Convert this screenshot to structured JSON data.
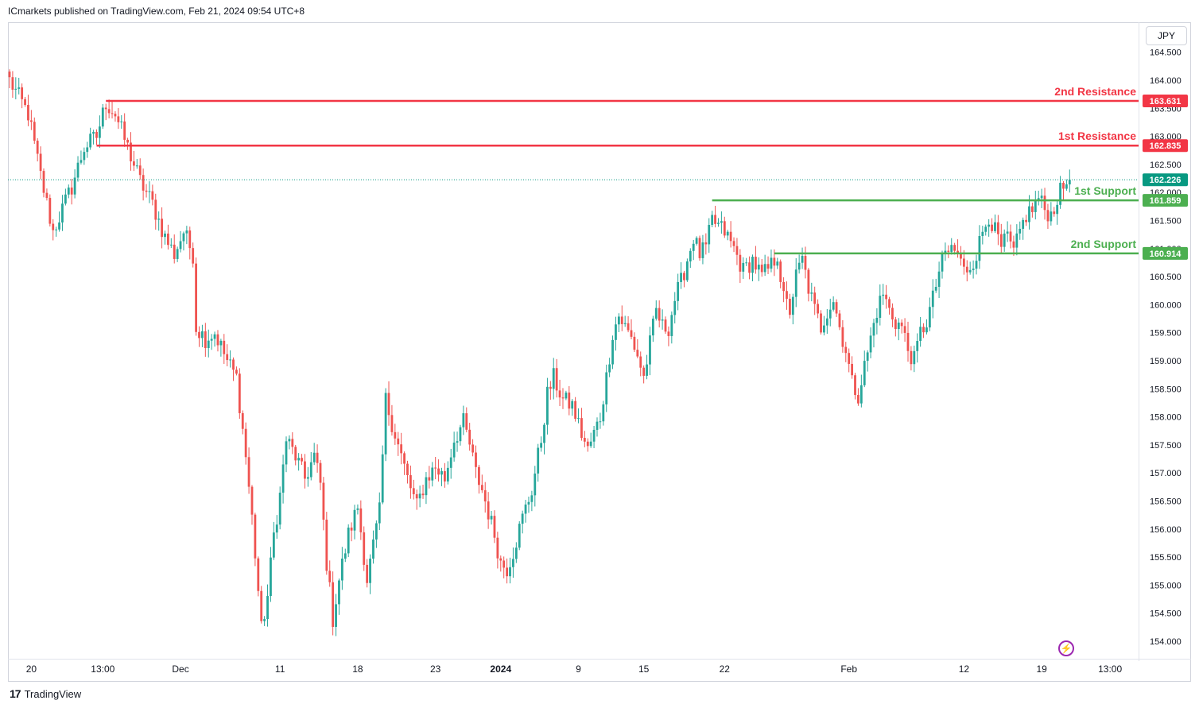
{
  "header": {
    "text": "ICmarkets published on TradingView.com, Feb 21, 2024 09:54 UTC+8"
  },
  "currency_button": "JPY",
  "brand": {
    "name": "TradingView",
    "logo": "17"
  },
  "colors": {
    "up": "#26a69a",
    "down": "#ef5350",
    "resistance": "#f23645",
    "support": "#4caf50",
    "last": "#089981"
  },
  "chart_data": {
    "type": "candlestick",
    "symbol_currency": "JPY",
    "ylim": [
      153.7,
      164.8
    ],
    "y_ticks": [
      "164.500",
      "164.000",
      "163.500",
      "163.000",
      "162.500",
      "162.000",
      "161.500",
      "161.000",
      "160.500",
      "160.000",
      "159.500",
      "159.000",
      "158.500",
      "158.000",
      "157.500",
      "157.000",
      "156.500",
      "156.000",
      "155.500",
      "155.000",
      "154.500",
      "154.000"
    ],
    "x_ticks": [
      {
        "label": "20",
        "bar": 7
      },
      {
        "label": "13:00",
        "bar": 30
      },
      {
        "label": "Dec",
        "bar": 55
      },
      {
        "label": "11",
        "bar": 87
      },
      {
        "label": "18",
        "bar": 112
      },
      {
        "label": "23",
        "bar": 137
      },
      {
        "label": "2024",
        "bar": 158
      },
      {
        "label": "9",
        "bar": 183
      },
      {
        "label": "15",
        "bar": 204
      },
      {
        "label": "22",
        "bar": 230
      },
      {
        "label": "Feb",
        "bar": 270
      },
      {
        "label": "12",
        "bar": 307
      },
      {
        "label": "19",
        "bar": 332
      },
      {
        "label": "13:00",
        "bar": 354
      }
    ],
    "levels": [
      {
        "label": "2nd Resistance",
        "value": "163.631",
        "kind": "resistance",
        "start_bar": 31
      },
      {
        "label": "1st Resistance",
        "value": "162.835",
        "kind": "resistance",
        "start_bar": 28
      },
      {
        "label": "1st Support",
        "value": "161.859",
        "kind": "support",
        "start_bar": 226
      },
      {
        "label": "2nd Support",
        "value": "160.914",
        "kind": "support",
        "start_bar": 246
      }
    ],
    "last_price": {
      "value": "162.226"
    },
    "path_points": [
      [
        0,
        164.0
      ],
      [
        6,
        163.4
      ],
      [
        10,
        162.3
      ],
      [
        14,
        161.3
      ],
      [
        17,
        161.7
      ],
      [
        20,
        162.1
      ],
      [
        24,
        162.8
      ],
      [
        28,
        163.0
      ],
      [
        31,
        163.6
      ],
      [
        34,
        163.4
      ],
      [
        38,
        162.8
      ],
      [
        42,
        162.2
      ],
      [
        46,
        161.8
      ],
      [
        50,
        161.2
      ],
      [
        53,
        160.9
      ],
      [
        56,
        161.3
      ],
      [
        59,
        160.9
      ],
      [
        60,
        159.6
      ],
      [
        63,
        159.4
      ],
      [
        66,
        159.5
      ],
      [
        70,
        159.0
      ],
      [
        73,
        158.7
      ],
      [
        76,
        157.3
      ],
      [
        78,
        156.2
      ],
      [
        80,
        154.9
      ],
      [
        81,
        154.2
      ],
      [
        83,
        154.8
      ],
      [
        85,
        155.9
      ],
      [
        87,
        156.6
      ],
      [
        89,
        157.6
      ],
      [
        92,
        157.3
      ],
      [
        95,
        156.9
      ],
      [
        98,
        157.3
      ],
      [
        100,
        156.8
      ],
      [
        102,
        155.4
      ],
      [
        104,
        154.4
      ],
      [
        106,
        155.1
      ],
      [
        109,
        155.9
      ],
      [
        112,
        156.4
      ],
      [
        115,
        155.1
      ],
      [
        117,
        155.7
      ],
      [
        119,
        156.3
      ],
      [
        121,
        158.3
      ],
      [
        123,
        157.9
      ],
      [
        126,
        157.3
      ],
      [
        128,
        156.9
      ],
      [
        131,
        156.4
      ],
      [
        134,
        156.9
      ],
      [
        137,
        157.1
      ],
      [
        140,
        156.9
      ],
      [
        143,
        157.6
      ],
      [
        146,
        157.9
      ],
      [
        148,
        157.5
      ],
      [
        150,
        157.0
      ],
      [
        152,
        156.7
      ],
      [
        154,
        156.3
      ],
      [
        156,
        155.9
      ],
      [
        158,
        155.4
      ],
      [
        160,
        155.3
      ],
      [
        162,
        155.6
      ],
      [
        165,
        156.2
      ],
      [
        168,
        156.7
      ],
      [
        171,
        157.6
      ],
      [
        173,
        158.4
      ],
      [
        175,
        158.7
      ],
      [
        178,
        158.3
      ],
      [
        181,
        158.2
      ],
      [
        184,
        157.7
      ],
      [
        186,
        157.4
      ],
      [
        188,
        157.7
      ],
      [
        190,
        158.0
      ],
      [
        192,
        158.7
      ],
      [
        194,
        159.5
      ],
      [
        196,
        159.8
      ],
      [
        198,
        159.6
      ],
      [
        200,
        159.4
      ],
      [
        202,
        159.1
      ],
      [
        204,
        158.7
      ],
      [
        206,
        159.3
      ],
      [
        208,
        159.9
      ],
      [
        210,
        159.6
      ],
      [
        212,
        159.6
      ],
      [
        214,
        160.1
      ],
      [
        216,
        160.4
      ],
      [
        218,
        160.8
      ],
      [
        220,
        161.2
      ],
      [
        222,
        160.9
      ],
      [
        224,
        161.0
      ],
      [
        226,
        161.5
      ],
      [
        228,
        161.4
      ],
      [
        230,
        161.3
      ],
      [
        233,
        161.0
      ],
      [
        236,
        160.6
      ],
      [
        239,
        160.8
      ],
      [
        242,
        160.5
      ],
      [
        245,
        160.7
      ],
      [
        247,
        160.9
      ],
      [
        249,
        160.1
      ],
      [
        251,
        159.9
      ],
      [
        253,
        160.5
      ],
      [
        255,
        160.8
      ],
      [
        257,
        160.3
      ],
      [
        259,
        159.9
      ],
      [
        261,
        159.6
      ],
      [
        263,
        159.9
      ],
      [
        265,
        160.1
      ],
      [
        267,
        159.6
      ],
      [
        269,
        159.2
      ],
      [
        271,
        158.6
      ],
      [
        273,
        158.4
      ],
      [
        275,
        158.9
      ],
      [
        277,
        159.4
      ],
      [
        279,
        159.9
      ],
      [
        281,
        160.2
      ],
      [
        283,
        159.9
      ],
      [
        285,
        159.7
      ],
      [
        287,
        159.6
      ],
      [
        289,
        159.2
      ],
      [
        291,
        159.0
      ],
      [
        293,
        159.5
      ],
      [
        295,
        159.7
      ],
      [
        297,
        160.1
      ],
      [
        299,
        160.6
      ],
      [
        301,
        160.9
      ],
      [
        303,
        161.0
      ],
      [
        305,
        160.9
      ],
      [
        307,
        160.6
      ],
      [
        309,
        160.7
      ],
      [
        311,
        160.9
      ],
      [
        313,
        161.3
      ],
      [
        315,
        161.6
      ],
      [
        317,
        161.3
      ],
      [
        319,
        161.0
      ],
      [
        321,
        161.2
      ],
      [
        323,
        160.9
      ],
      [
        325,
        161.3
      ],
      [
        327,
        161.6
      ],
      [
        329,
        161.7
      ],
      [
        331,
        161.9
      ],
      [
        333,
        161.7
      ],
      [
        335,
        161.6
      ],
      [
        337,
        161.9
      ],
      [
        339,
        162.1
      ],
      [
        341,
        162.226
      ]
    ]
  }
}
